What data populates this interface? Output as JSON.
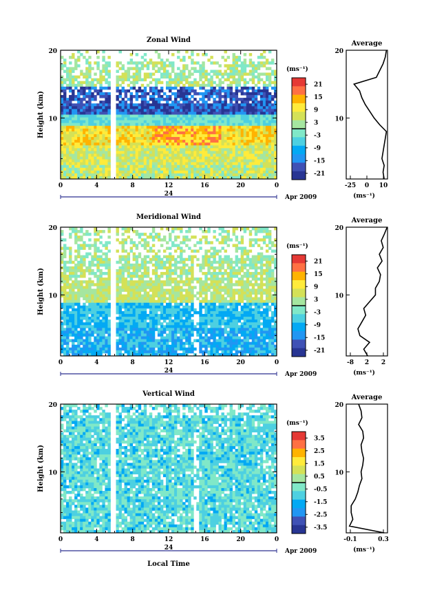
{
  "figure": {
    "x_axis_label": "Local Time",
    "y_axis_label": "Height (km)",
    "date_label": "Apr 2009",
    "day_label": "24",
    "colorbar_unit": "(ms⁻¹)",
    "profile_title": "Average",
    "profile_unit": "(ms⁻¹)"
  },
  "colors": {
    "scale": [
      "#283593",
      "#3f51b5",
      "#2196f3",
      "#03a9f4",
      "#4dd0e1",
      "#80e8c8",
      "#a5e6a0",
      "#d4e157",
      "#ffeb3b",
      "#ffb300",
      "#ff7043",
      "#e53935"
    ]
  },
  "chart_data": [
    {
      "type": "heatmap",
      "title": "Zonal Wind",
      "x_ticks": [
        "0",
        "4",
        "8",
        "12",
        "16",
        "20",
        "0"
      ],
      "y_ticks": [
        "10",
        "20"
      ],
      "xlim": [
        0,
        24
      ],
      "ylim": [
        1,
        20
      ],
      "colorbar_ticks": [
        "21",
        "15",
        "9",
        "3",
        "-3",
        "-9",
        "-15",
        "-21"
      ],
      "colorbar_range": [
        -24,
        24
      ],
      "profile": {
        "x_ticks": [
          "-25",
          "0",
          "10"
        ],
        "xlim": [
          -25,
          12
        ],
        "heights": [
          1,
          2,
          3,
          4,
          5,
          6,
          7,
          8,
          9,
          10,
          11,
          12,
          13,
          14,
          15,
          16,
          17,
          18,
          19,
          20
        ],
        "values": [
          9,
          8,
          9,
          7,
          8,
          9,
          10,
          11,
          5,
          0,
          -4,
          -8,
          -11,
          -13,
          -18,
          2,
          5,
          8,
          10,
          11
        ]
      }
    },
    {
      "type": "heatmap",
      "title": "Meridional Wind",
      "x_ticks": [
        "0",
        "4",
        "8",
        "12",
        "16",
        "20",
        "0"
      ],
      "y_ticks": [
        "10",
        "20"
      ],
      "xlim": [
        0,
        24
      ],
      "ylim": [
        1,
        20
      ],
      "colorbar_ticks": [
        "21",
        "15",
        "9",
        "3",
        "-3",
        "-9",
        "-15",
        "-21"
      ],
      "colorbar_range": [
        -24,
        24
      ],
      "profile": {
        "x_ticks": [
          "-8",
          "2",
          "2"
        ],
        "xlim": [
          -8,
          2.6
        ],
        "heights": [
          1,
          2,
          3,
          4,
          5,
          6,
          7,
          8,
          9,
          10,
          11,
          12,
          13,
          14,
          15,
          16,
          17,
          18,
          19,
          20
        ],
        "values": [
          -2.5,
          -3.5,
          -2.0,
          -4.5,
          -5.0,
          -4.0,
          -3.0,
          -3.5,
          -2.0,
          -0.5,
          -0.5,
          0.5,
          0.8,
          0.0,
          1.2,
          0.5,
          1.5,
          1.0,
          1.8,
          2.5
        ]
      }
    },
    {
      "type": "heatmap",
      "title": "Vertical Wind",
      "x_ticks": [
        "0",
        "4",
        "8",
        "12",
        "16",
        "20",
        "0"
      ],
      "y_ticks": [
        "10",
        "20"
      ],
      "xlim": [
        0,
        24
      ],
      "ylim": [
        1,
        20
      ],
      "colorbar_ticks": [
        "3.5",
        "2.5",
        "1.5",
        "0.5",
        "-0.5",
        "-1.5",
        "-2.5",
        "-3.5"
      ],
      "colorbar_range": [
        -4,
        4
      ],
      "profile": {
        "x_ticks": [
          "-0.1",
          "0.3"
        ],
        "xlim": [
          -0.16,
          0.34
        ],
        "heights": [
          1,
          2,
          3,
          4,
          5,
          6,
          7,
          8,
          9,
          10,
          11,
          12,
          13,
          14,
          15,
          16,
          17,
          18,
          19,
          20
        ],
        "values": [
          0.3,
          -0.12,
          -0.08,
          -0.1,
          -0.1,
          -0.05,
          -0.02,
          0.0,
          0.03,
          0.02,
          0.04,
          0.05,
          0.03,
          0.02,
          0.05,
          0.04,
          -0.01,
          0.03,
          0.02,
          -0.01
        ]
      }
    }
  ]
}
